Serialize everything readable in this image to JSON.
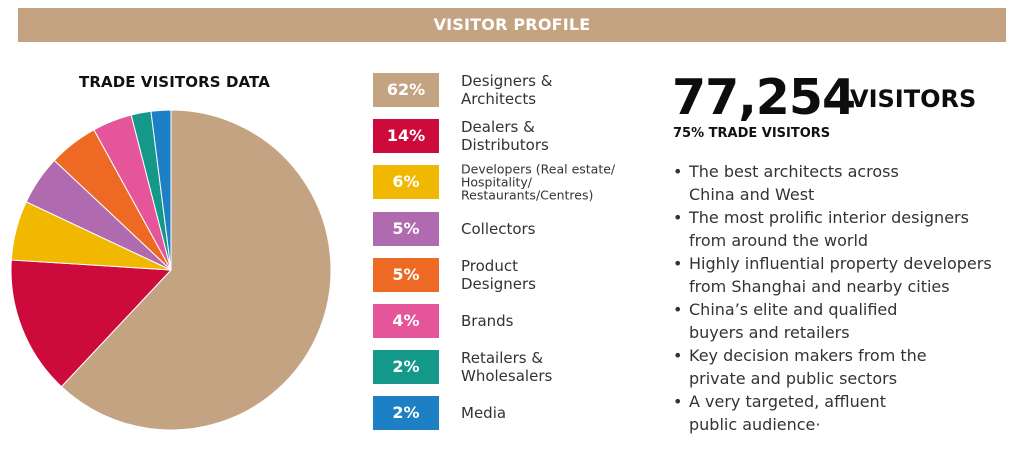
{
  "banner": {
    "title": "VISITOR PROFILE"
  },
  "chart_data": {
    "type": "pie",
    "title": "TRADE VISITORS DATA",
    "slices": [
      {
        "label": "Designers &\nArchitects",
        "value": 62,
        "display": "62%",
        "color": "#c4a382"
      },
      {
        "label": "Dealers &\nDistributors",
        "value": 14,
        "display": "14%",
        "color": "#cc0a3c"
      },
      {
        "label": "Developers (Real estate/\nHospitality/\nRestaurants/Centres)",
        "value": 6,
        "display": "6%",
        "color": "#f0b800"
      },
      {
        "label": "Collectors",
        "value": 5,
        "display": "5%",
        "color": "#b06ab0"
      },
      {
        "label": "Product\nDesigners",
        "value": 5,
        "display": "5%",
        "color": "#ee6a24"
      },
      {
        "label": "Brands",
        "value": 4,
        "display": "4%",
        "color": "#e4559a"
      },
      {
        "label": "Retailers &\nWholesalers",
        "value": 2,
        "display": "2%",
        "color": "#13988a"
      },
      {
        "label": "Media",
        "value": 2,
        "display": "2%",
        "color": "#1e80c4"
      }
    ],
    "legend_position": "right"
  },
  "stats": {
    "number": "77,254",
    "unit": "VISITORS",
    "subhead": "75% TRADE VISITORS",
    "bullets": [
      "The best architects across\nChina and West",
      "The most prolific interior designers\nfrom around the world",
      "Highly influential property developers\nfrom Shanghai and nearby cities",
      "China’s elite and qualified\nbuyers and retailers",
      "Key decision makers from the\nprivate and public sectors",
      "A very targeted, affluent\npublic audience·"
    ],
    "bullet_symbol": "•"
  }
}
